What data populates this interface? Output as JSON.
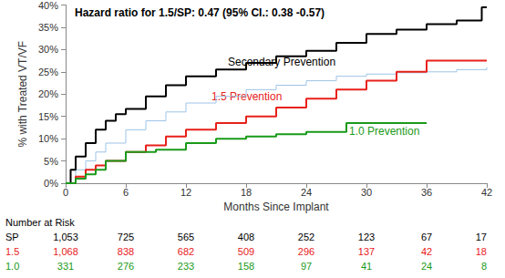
{
  "chart_data": {
    "type": "line",
    "title": "Hazard ratio for 1.5/SP: 0.47 (95% CI.: 0.38 -0.57)",
    "x_label": "Months Since Implant",
    "y_label": "% with Treated VT/VF",
    "xlim": [
      0,
      42
    ],
    "xticks": [
      0,
      6,
      12,
      18,
      24,
      30,
      36,
      42
    ],
    "ylim": [
      0,
      40
    ],
    "yticks": [
      {
        "value": 0,
        "label": "0%"
      },
      {
        "value": 5,
        "label": "5%"
      },
      {
        "value": 10,
        "label": "10%"
      },
      {
        "value": 15,
        "label": "15%"
      },
      {
        "value": 20,
        "label": "20%"
      },
      {
        "value": 25,
        "label": "25%"
      },
      {
        "value": 30,
        "label": "30%"
      },
      {
        "value": 35,
        "label": "35%"
      },
      {
        "value": 40,
        "label": "40%"
      }
    ],
    "grid": false,
    "line_style": "step",
    "series": [
      {
        "color": "#9dc3e6",
        "x": [
          0,
          1,
          2,
          3,
          4,
          6,
          8,
          10,
          12,
          15,
          18,
          21,
          24,
          27,
          30,
          33,
          36,
          39,
          42
        ],
        "values": [
          0,
          3,
          5,
          7,
          9,
          12,
          14,
          16,
          18,
          19.5,
          21,
          22,
          23,
          24,
          24.5,
          24.8,
          25,
          25.5,
          26
        ]
      },
      {
        "name": "Secondary Prevention",
        "color": "#000000",
        "x": [
          0,
          0.5,
          1,
          2,
          3,
          4,
          5,
          6,
          8,
          10,
          12,
          15,
          18,
          21,
          24,
          27,
          30,
          33,
          36,
          39,
          41.5,
          42
        ],
        "values": [
          0,
          3,
          6,
          9,
          12,
          14,
          15.5,
          16.7,
          19.5,
          22,
          24,
          25.5,
          27,
          28.5,
          29.7,
          31.5,
          33.5,
          34.5,
          35.7,
          36.5,
          39.5,
          39.5
        ]
      },
      {
        "name": "1.5 Prevention",
        "color": "#e8201a",
        "x": [
          0,
          1,
          2,
          3,
          4,
          6,
          8,
          10,
          12,
          15,
          18,
          21,
          24,
          27,
          30,
          33,
          36,
          39,
          42
        ],
        "values": [
          0,
          1.5,
          3,
          4,
          5,
          7,
          8.5,
          10.5,
          12,
          13.5,
          15,
          17,
          19,
          21,
          23,
          25,
          27.5,
          27.5,
          27.5
        ]
      },
      {
        "name": "1.0 Prevention",
        "color": "#1a9a1a",
        "x": [
          0,
          1,
          2,
          3,
          4,
          6,
          9,
          12,
          15,
          18,
          21,
          24,
          28,
          32,
          36
        ],
        "values": [
          0,
          1,
          2,
          3,
          5,
          7,
          7.5,
          9,
          10,
          10.5,
          11,
          11.5,
          13.5,
          13.5,
          13.5
        ]
      }
    ],
    "annotations": [
      {
        "text": "Secondary Prevention",
        "color": "#000000"
      },
      {
        "text": "1.5 Prevention",
        "color": "#e8201a"
      },
      {
        "text": "1.0 Prevention",
        "color": "#1a9a1a"
      }
    ],
    "number_at_risk": {
      "title": "Number at Risk",
      "x": [
        0,
        6,
        12,
        18,
        24,
        30,
        36,
        42
      ],
      "rows": [
        {
          "label": "SP",
          "color": "#000000",
          "values": [
            "1,053",
            "725",
            "565",
            "408",
            "252",
            "123",
            "67",
            "17"
          ]
        },
        {
          "label": "1.5",
          "color": "#e8201a",
          "values": [
            "1,068",
            "838",
            "682",
            "509",
            "296",
            "137",
            "42",
            "18"
          ]
        },
        {
          "label": "1.0",
          "color": "#1a9a1a",
          "values": [
            "331",
            "276",
            "233",
            "158",
            "97",
            "41",
            "24",
            "8"
          ]
        }
      ]
    }
  }
}
